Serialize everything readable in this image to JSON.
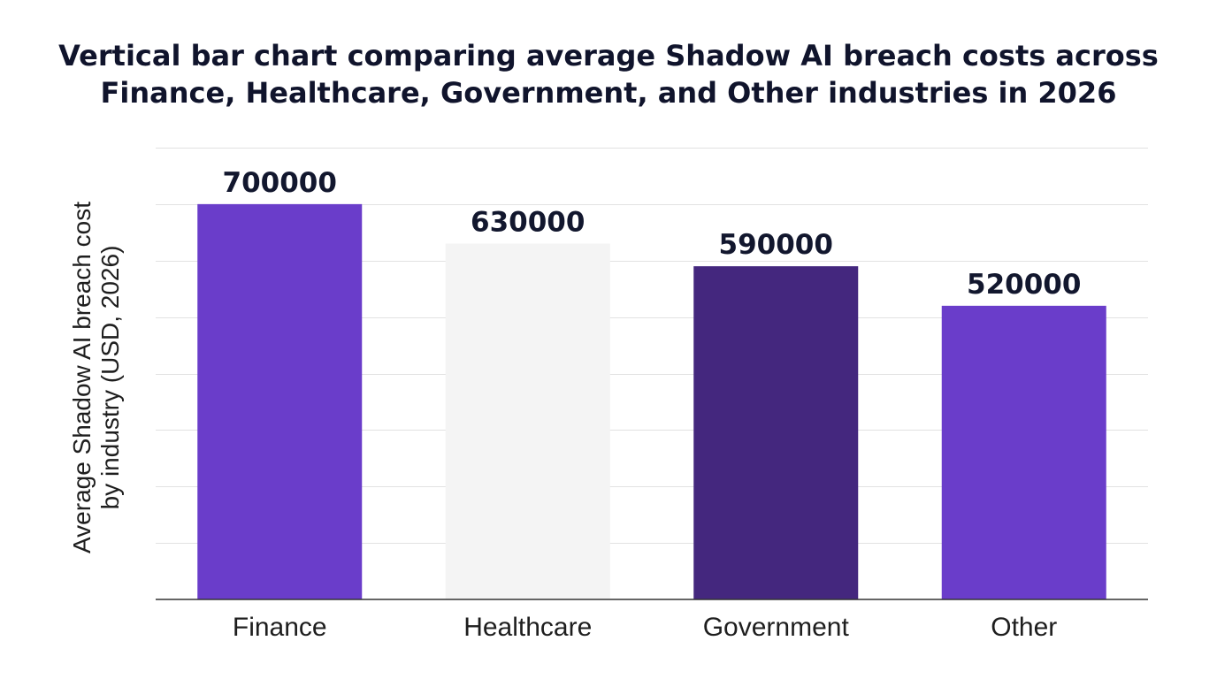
{
  "chart_data": {
    "type": "bar",
    "title": "Vertical bar chart comparing average Shadow AI breach costs across Finance, Healthcare, Government, and Other industries in 2026",
    "xlabel": "",
    "ylabel": "Average Shadow AI breach cost by industry (USD, 2026)",
    "ylabel_lines": [
      "Average Shadow AI breach cost",
      "by industry (USD, 2026)"
    ],
    "categories": [
      "Finance",
      "Healthcare",
      "Government",
      "Other"
    ],
    "values": [
      700000,
      630000,
      590000,
      520000
    ],
    "data_labels": [
      "700000",
      "630000",
      "590000",
      "520000"
    ],
    "bar_colors": [
      "#6a3dca",
      "#f4f4f4",
      "#44277e",
      "#6a3dca"
    ],
    "ylim": [
      0,
      800000
    ],
    "y_gridlines": [
      100000,
      200000,
      300000,
      400000,
      500000,
      600000,
      700000,
      800000
    ],
    "grid": true,
    "y_tick_labels_shown": false,
    "legend": "none"
  }
}
